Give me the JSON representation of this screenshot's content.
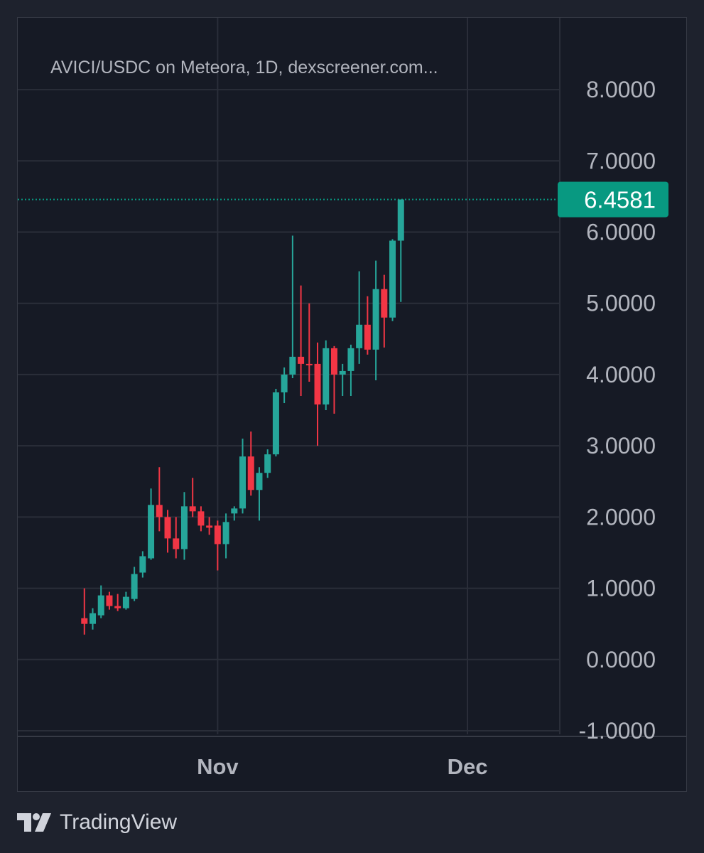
{
  "title": "AVICI/USDC on Meteora, 1D, dexscreener.com...",
  "brand": {
    "name": "TradingView",
    "icon": "tradingview-logo-icon"
  },
  "colors": {
    "up": "#26a69a",
    "down": "#f23645",
    "background": "#161a25",
    "grid": "#2a2e39",
    "axis_text": "#b2b5be",
    "last_price_badge": "#089981"
  },
  "chart_data": {
    "type": "candlestick",
    "title": "AVICI/USDC on Meteora, 1D, dexscreener.com...",
    "y_ticks": [
      "8.0000",
      "7.0000",
      "6.0000",
      "5.0000",
      "4.0000",
      "3.0000",
      "2.0000",
      "1.0000",
      "0.0000",
      "-1.0000"
    ],
    "y_tick_values": [
      8,
      7,
      6,
      5,
      4,
      3,
      2,
      1,
      0,
      -1
    ],
    "ylim": [
      -1.05,
      8.4
    ],
    "x_ticks": [
      "Nov",
      "Dec"
    ],
    "x_tick_dates": [
      "2025-11-01",
      "2025-12-01"
    ],
    "xlim": [
      "2025-10-08",
      "2025-12-12"
    ],
    "last_price": 6.4581,
    "last_price_label": "6.4581",
    "candles": [
      {
        "date": "2025-10-16",
        "open": 0.58,
        "high": 1.0,
        "low": 0.35,
        "close": 0.5
      },
      {
        "date": "2025-10-17",
        "open": 0.5,
        "high": 0.72,
        "low": 0.42,
        "close": 0.65
      },
      {
        "date": "2025-10-18",
        "open": 0.62,
        "high": 1.04,
        "low": 0.58,
        "close": 0.9
      },
      {
        "date": "2025-10-19",
        "open": 0.9,
        "high": 0.95,
        "low": 0.7,
        "close": 0.75
      },
      {
        "date": "2025-10-20",
        "open": 0.75,
        "high": 0.92,
        "low": 0.68,
        "close": 0.72
      },
      {
        "date": "2025-10-21",
        "open": 0.72,
        "high": 0.95,
        "low": 0.7,
        "close": 0.88
      },
      {
        "date": "2025-10-22",
        "open": 0.85,
        "high": 1.3,
        "low": 0.82,
        "close": 1.2
      },
      {
        "date": "2025-10-23",
        "open": 1.22,
        "high": 1.52,
        "low": 1.15,
        "close": 1.45
      },
      {
        "date": "2025-10-24",
        "open": 1.42,
        "high": 2.4,
        "low": 1.4,
        "close": 2.17
      },
      {
        "date": "2025-10-25",
        "open": 2.17,
        "high": 2.7,
        "low": 1.8,
        "close": 2.0
      },
      {
        "date": "2025-10-26",
        "open": 2.0,
        "high": 2.1,
        "low": 1.5,
        "close": 1.7
      },
      {
        "date": "2025-10-27",
        "open": 1.7,
        "high": 2.0,
        "low": 1.42,
        "close": 1.55
      },
      {
        "date": "2025-10-28",
        "open": 1.55,
        "high": 2.35,
        "low": 1.4,
        "close": 2.15
      },
      {
        "date": "2025-10-29",
        "open": 2.15,
        "high": 2.55,
        "low": 2.0,
        "close": 2.08
      },
      {
        "date": "2025-10-30",
        "open": 2.08,
        "high": 2.15,
        "low": 1.8,
        "close": 1.88
      },
      {
        "date": "2025-10-31",
        "open": 1.88,
        "high": 2.0,
        "low": 1.75,
        "close": 1.85
      },
      {
        "date": "2025-11-01",
        "open": 1.88,
        "high": 1.95,
        "low": 1.25,
        "close": 1.62
      },
      {
        "date": "2025-11-02",
        "open": 1.62,
        "high": 2.05,
        "low": 1.42,
        "close": 1.93
      },
      {
        "date": "2025-11-03",
        "open": 2.05,
        "high": 2.15,
        "low": 1.95,
        "close": 2.12
      },
      {
        "date": "2025-11-04",
        "open": 2.12,
        "high": 3.1,
        "low": 2.05,
        "close": 2.85
      },
      {
        "date": "2025-11-05",
        "open": 2.85,
        "high": 3.2,
        "low": 2.3,
        "close": 2.38
      },
      {
        "date": "2025-11-06",
        "open": 2.38,
        "high": 2.7,
        "low": 1.95,
        "close": 2.62
      },
      {
        "date": "2025-11-07",
        "open": 2.62,
        "high": 2.95,
        "low": 2.55,
        "close": 2.88
      },
      {
        "date": "2025-11-08",
        "open": 2.88,
        "high": 3.8,
        "low": 2.85,
        "close": 3.75
      },
      {
        "date": "2025-11-09",
        "open": 3.75,
        "high": 4.1,
        "low": 3.6,
        "close": 4.0
      },
      {
        "date": "2025-11-10",
        "open": 4.0,
        "high": 5.95,
        "low": 3.95,
        "close": 4.25
      },
      {
        "date": "2025-11-11",
        "open": 4.25,
        "high": 5.25,
        "low": 3.7,
        "close": 4.15
      },
      {
        "date": "2025-11-12",
        "open": 4.15,
        "high": 5.0,
        "low": 3.9,
        "close": 4.14
      },
      {
        "date": "2025-11-13",
        "open": 4.15,
        "high": 4.45,
        "low": 3.0,
        "close": 3.58
      },
      {
        "date": "2025-11-14",
        "open": 3.58,
        "high": 4.48,
        "low": 3.5,
        "close": 4.37
      },
      {
        "date": "2025-11-15",
        "open": 4.37,
        "high": 4.4,
        "low": 3.45,
        "close": 4.0
      },
      {
        "date": "2025-11-16",
        "open": 4.0,
        "high": 4.15,
        "low": 3.7,
        "close": 4.05
      },
      {
        "date": "2025-11-17",
        "open": 4.05,
        "high": 4.42,
        "low": 3.7,
        "close": 4.37
      },
      {
        "date": "2025-11-18",
        "open": 4.37,
        "high": 5.45,
        "low": 4.15,
        "close": 4.7
      },
      {
        "date": "2025-11-19",
        "open": 4.7,
        "high": 5.1,
        "low": 4.28,
        "close": 4.35
      },
      {
        "date": "2025-11-20",
        "open": 4.35,
        "high": 5.6,
        "low": 3.92,
        "close": 5.2
      },
      {
        "date": "2025-11-21",
        "open": 5.2,
        "high": 5.4,
        "low": 4.38,
        "close": 4.8
      },
      {
        "date": "2025-11-22",
        "open": 4.8,
        "high": 5.9,
        "low": 4.75,
        "close": 5.88
      },
      {
        "date": "2025-11-23",
        "open": 5.88,
        "high": 6.45,
        "low": 5.02,
        "close": 6.4581
      }
    ]
  }
}
